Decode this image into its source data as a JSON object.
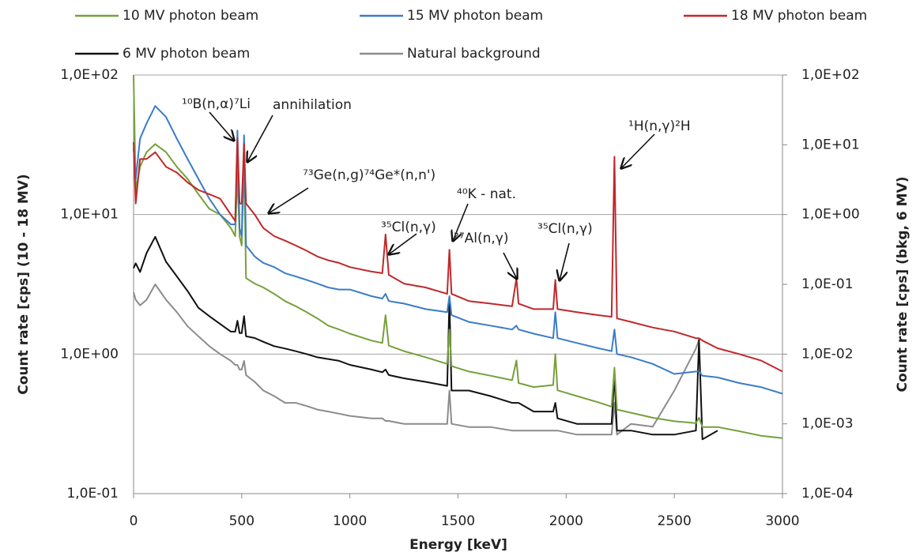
{
  "chart_data": {
    "type": "line",
    "xlabel": "Energy [keV]",
    "ylabel": "Count rate [cps] (10 - 18 MV)",
    "y2label": "Count rate [cps] (bkg, 6 MV)",
    "xlim": [
      0,
      3000
    ],
    "xticks": [
      0,
      500,
      1000,
      1500,
      2000,
      2500,
      3000
    ],
    "ylim": [
      0.1,
      100
    ],
    "ylog": true,
    "yticks": [
      {
        "value": 0.1,
        "label": "1,0E-01"
      },
      {
        "value": 1,
        "label": "1,0E+00"
      },
      {
        "value": 10,
        "label": "1,0E+01"
      },
      {
        "value": 100,
        "label": "1,0E+02"
      }
    ],
    "y2lim": [
      0.0001,
      100
    ],
    "y2log": true,
    "y2ticks": [
      {
        "value": 0.0001,
        "label": "1,0E-04"
      },
      {
        "value": 0.001,
        "label": "1,0E-03"
      },
      {
        "value": 0.01,
        "label": "1,0E-02"
      },
      {
        "value": 0.1,
        "label": "1,0E-01"
      },
      {
        "value": 1,
        "label": "1,0E+00"
      },
      {
        "value": 10,
        "label": "1,0E+01"
      },
      {
        "value": 100,
        "label": "1,0E+02"
      }
    ],
    "grid": true,
    "legend": "top",
    "x": [
      0,
      10,
      30,
      60,
      100,
      150,
      200,
      250,
      300,
      350,
      400,
      450,
      470,
      480,
      490,
      500,
      511,
      520,
      560,
      600,
      650,
      700,
      750,
      800,
      850,
      900,
      950,
      1000,
      1100,
      1150,
      1165,
      1180,
      1250,
      1350,
      1450,
      1460,
      1470,
      1550,
      1650,
      1750,
      1770,
      1780,
      1850,
      1940,
      1950,
      1960,
      2050,
      2150,
      2210,
      2223,
      2235,
      2300,
      2400,
      2500,
      2600,
      2614,
      2630,
      2700,
      2800,
      2900,
      3000
    ],
    "series": [
      {
        "name": "10 MV photon beam",
        "color": "#77a03c",
        "values": [
          100,
          15,
          22,
          28,
          32,
          28,
          22,
          18,
          14,
          11,
          10,
          8,
          7,
          20,
          7,
          6,
          25,
          3.5,
          3.2,
          3.0,
          2.7,
          2.4,
          2.2,
          2.0,
          1.8,
          1.6,
          1.5,
          1.4,
          1.25,
          1.2,
          1.9,
          1.15,
          1.05,
          0.95,
          0.85,
          1.5,
          0.82,
          0.75,
          0.7,
          0.65,
          0.9,
          0.62,
          0.58,
          0.6,
          1.0,
          0.55,
          0.5,
          0.45,
          0.42,
          0.8,
          0.4,
          0.38,
          0.35,
          0.33,
          0.32,
          0.35,
          0.3,
          0.3,
          0.28,
          0.26,
          0.25
        ]
      },
      {
        "name": "15 MV photon beam",
        "color": "#3a7cc8",
        "values": [
          30,
          18,
          35,
          45,
          60,
          50,
          35,
          25,
          18,
          13,
          10,
          8.5,
          8.5,
          40,
          8,
          7,
          37,
          6,
          5,
          4.5,
          4.2,
          3.8,
          3.6,
          3.4,
          3.2,
          3.0,
          2.9,
          2.9,
          2.6,
          2.5,
          2.7,
          2.4,
          2.3,
          2.1,
          2.0,
          2.6,
          1.9,
          1.7,
          1.6,
          1.5,
          1.6,
          1.5,
          1.4,
          1.3,
          2.0,
          1.3,
          1.2,
          1.1,
          1.05,
          1.5,
          1.0,
          0.95,
          0.85,
          0.72,
          0.75,
          0.75,
          0.7,
          0.68,
          0.62,
          0.58,
          0.52
        ]
      },
      {
        "name": "18 MV photon beam",
        "color": "#c0282a",
        "values": [
          33,
          12,
          25,
          25,
          28,
          22,
          20,
          17,
          15,
          14,
          13,
          10,
          9,
          35,
          12,
          12,
          32,
          12,
          10,
          8,
          7,
          6.5,
          6,
          5.5,
          5,
          4.7,
          4.5,
          4.2,
          3.9,
          3.8,
          7.2,
          3.7,
          3.2,
          3.0,
          2.7,
          5.6,
          2.7,
          2.4,
          2.3,
          2.2,
          3.5,
          2.3,
          2.1,
          2.1,
          3.4,
          2.1,
          2.0,
          1.9,
          1.85,
          26,
          1.8,
          1.7,
          1.55,
          1.45,
          1.3,
          1.3,
          1.25,
          1.1,
          1.0,
          0.9,
          0.75
        ]
      },
      {
        "name": "6 MV photon beam",
        "color": "#111111",
        "axis": "y2",
        "values": [
          0.17,
          0.2,
          0.15,
          0.28,
          0.48,
          0.21,
          0.13,
          0.08,
          0.046,
          0.035,
          0.027,
          0.021,
          0.021,
          0.03,
          0.02,
          0.02,
          0.035,
          0.018,
          0.017,
          0.015,
          0.013,
          0.012,
          0.011,
          0.01,
          0.009,
          0.0085,
          0.008,
          0.007,
          0.006,
          0.0055,
          0.006,
          0.005,
          0.0045,
          0.004,
          0.0035,
          0.059,
          0.003,
          0.003,
          0.0025,
          0.002,
          0.002,
          0.002,
          0.0015,
          0.0015,
          0.002,
          0.0012,
          0.001,
          0.001,
          0.001,
          0.005,
          0.0008,
          0.0008,
          0.0007,
          0.0007,
          0.0008,
          0.016,
          0.0006,
          0.0008,
          null,
          null,
          null
        ]
      },
      {
        "name": "Natural background",
        "color": "#8c8c8c",
        "axis": "y2",
        "values": [
          0.077,
          0.06,
          0.05,
          0.06,
          0.1,
          0.06,
          0.04,
          0.025,
          0.018,
          0.013,
          0.01,
          0.008,
          0.007,
          0.007,
          0.006,
          0.006,
          0.008,
          0.005,
          0.004,
          0.003,
          0.0025,
          0.002,
          0.002,
          0.0018,
          0.0016,
          0.0015,
          0.0014,
          0.0013,
          0.0012,
          0.0012,
          0.0011,
          0.0011,
          0.001,
          0.001,
          0.001,
          0.003,
          0.001,
          0.0009,
          0.0009,
          0.0008,
          0.0008,
          0.0008,
          0.0008,
          0.0008,
          0.0008,
          0.0008,
          0.0007,
          0.0007,
          0.0007,
          0.002,
          0.0007,
          0.001,
          0.00091,
          0.003,
          0.012,
          0.016,
          null,
          null,
          null,
          null,
          null
        ]
      }
    ],
    "annotations": [
      "¹⁰B(n,α)⁷Li",
      "annihilation",
      "⁷³Ge(n,g)⁷⁴Ge*(n,n')",
      "⁴⁰K - nat.",
      "³⁵Cl(n,γ)",
      "²⁷Al(n,γ)",
      "³⁵Cl(n,γ)",
      "¹H(n,γ)²H"
    ]
  }
}
